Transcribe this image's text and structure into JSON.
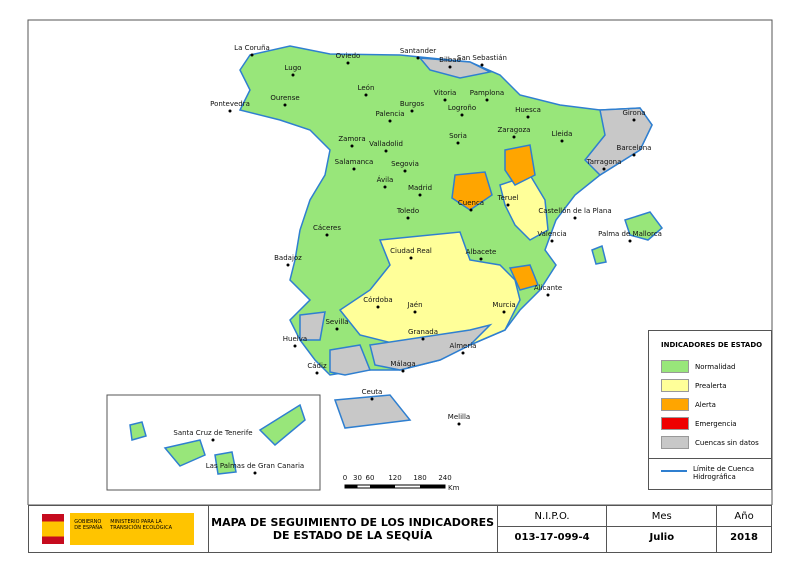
{
  "map": {
    "cities": [
      "La Coruña",
      "Lugo",
      "Ourense",
      "Pontevedra",
      "Oviedo",
      "Santander",
      "Bilbao",
      "San Sebastián",
      "Vitoria",
      "Pamplona",
      "León",
      "Burgos",
      "Logroño",
      "Huesca",
      "Palencia",
      "Zamora",
      "Valladolid",
      "Soria",
      "Zaragoza",
      "Lleida",
      "Girona",
      "Barcelona",
      "Tarragona",
      "Salamanca",
      "Segovia",
      "Ávila",
      "Madrid",
      "Teruel",
      "Castellón de la Plana",
      "Cuenca",
      "Toledo",
      "Cáceres",
      "Valencia",
      "Palma de Mallorca",
      "Badajoz",
      "Ciudad Real",
      "Albacete",
      "Alicante",
      "Córdoba",
      "Jaén",
      "Murcia",
      "Sevilla",
      "Granada",
      "Huelva",
      "Almería",
      "Málaga",
      "Cádiz",
      "Ceuta",
      "Melilla",
      "Santa Cruz de Tenerife",
      "Las Palmas de Gran Canaria"
    ]
  },
  "legend": {
    "title": "INDICADORES DE ESTADO",
    "items": [
      {
        "label": "Normalidad",
        "color": "#98e67a"
      },
      {
        "label": "Prealerta",
        "color": "#ffff99"
      },
      {
        "label": "Alerta",
        "color": "#ffa500"
      },
      {
        "label": "Emergencia",
        "color": "#ee0000"
      },
      {
        "label": "Cuencas sin datos",
        "color": "#c8c8c8"
      }
    ],
    "boundary_label": "Límite de Cuenca Hidrográfica",
    "boundary_color": "#2f7fd0"
  },
  "scale": {
    "ticks": [
      0,
      30,
      60,
      120,
      180,
      240
    ],
    "unit": "Km"
  },
  "footer": {
    "government": "GOBIERNO DE ESPAÑA",
    "ministry": "MINISTERIO PARA LA TRANSICIÓN ECOLÓGICA",
    "title_lines": [
      "MAPA DE SEGUIMIENTO DE LOS INDICADORES",
      "DE ESTADO DE LA SEQUÍA"
    ],
    "nipo_label": "N.I.P.O.",
    "nipo": "013-17-099-4",
    "month_label": "Mes",
    "month": "Julio",
    "year_label": "Año",
    "year": "2018"
  }
}
